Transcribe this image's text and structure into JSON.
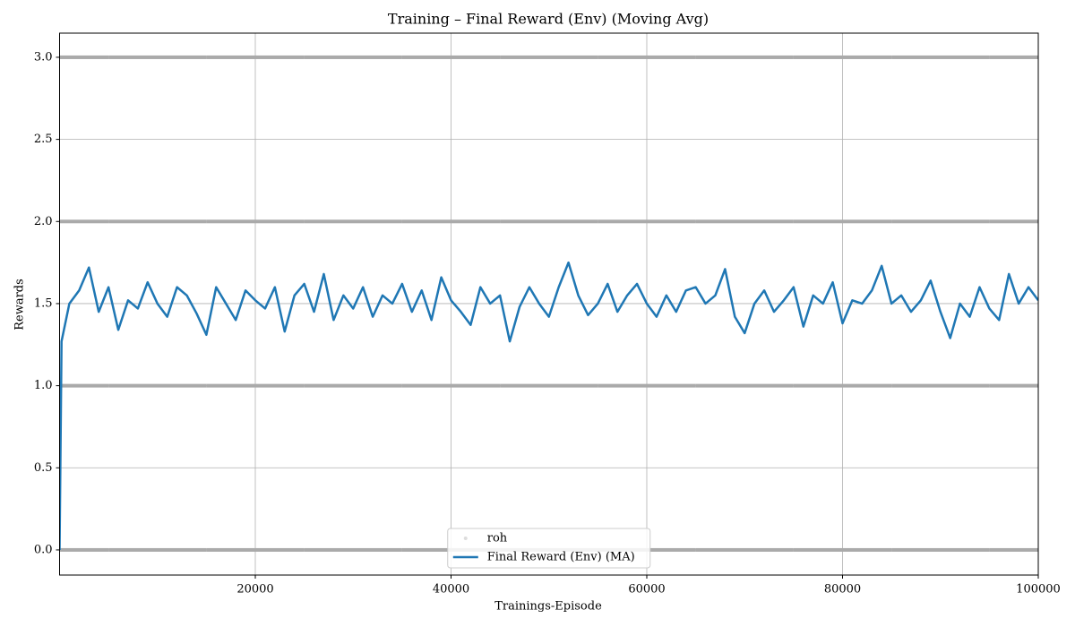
{
  "chart_data": {
    "type": "line",
    "title": "Training – Final Reward (Env) (Moving Avg)",
    "x_label": "Trainings-Episode",
    "y_label": "Rewards",
    "xlim": [
      0,
      100000
    ],
    "xticks": [
      20000,
      40000,
      60000,
      80000,
      100000
    ],
    "ylim": [
      -0.153,
      3.147
    ],
    "yticks": [
      {
        "value": 0,
        "label": "0.0"
      },
      {
        "value": 0.5,
        "label": "0.5"
      },
      {
        "value": 1,
        "label": "1.0"
      },
      {
        "value": 1.5,
        "label": "1.5"
      },
      {
        "value": 2,
        "label": "2.0"
      },
      {
        "value": 2.5,
        "label": "2.5"
      },
      {
        "value": 3,
        "label": "3.0"
      }
    ],
    "grid": true,
    "legend": "lower center",
    "series": [
      {
        "name": "roh",
        "kind": "scatter",
        "color": "#aaaaaa",
        "x": [
          0,
          10000,
          20000,
          30000,
          40000,
          50000,
          60000,
          70000,
          80000,
          90000,
          100000,
          0,
          10000,
          20000,
          30000,
          40000,
          50000,
          60000,
          70000,
          80000,
          90000,
          100000,
          0,
          10000,
          20000,
          30000,
          40000,
          50000,
          60000,
          70000,
          80000,
          90000,
          100000,
          0,
          10000,
          20000,
          30000,
          40000,
          50000,
          60000,
          70000,
          80000,
          90000,
          100000
        ],
        "values": [
          0,
          0,
          0,
          0,
          0,
          0,
          0,
          0,
          0,
          0,
          0,
          1,
          1,
          1,
          1,
          1,
          1,
          1,
          1,
          1,
          1,
          1,
          2,
          2,
          2,
          2,
          2,
          2,
          2,
          2,
          2,
          2,
          2,
          3,
          3,
          3,
          3,
          3,
          3,
          3,
          3,
          3,
          3,
          3
        ]
      },
      {
        "name": "Final Reward (Env) (MA)",
        "kind": "line",
        "color": "#1f77b4",
        "x": [
          0,
          200,
          1000,
          2000,
          3000,
          4000,
          5000,
          6000,
          7000,
          8000,
          9000,
          10000,
          11000,
          12000,
          13000,
          14000,
          15000,
          16000,
          17000,
          18000,
          19000,
          20000,
          21000,
          22000,
          23000,
          24000,
          25000,
          26000,
          27000,
          28000,
          29000,
          30000,
          31000,
          32000,
          33000,
          34000,
          35000,
          36000,
          37000,
          38000,
          39000,
          40000,
          41000,
          42000,
          43000,
          44000,
          45000,
          46000,
          47000,
          48000,
          49000,
          50000,
          51000,
          52000,
          53000,
          54000,
          55000,
          56000,
          57000,
          58000,
          59000,
          60000,
          61000,
          62000,
          63000,
          64000,
          65000,
          66000,
          67000,
          68000,
          69000,
          70000,
          71000,
          72000,
          73000,
          74000,
          75000,
          76000,
          77000,
          78000,
          79000,
          80000,
          81000,
          82000,
          83000,
          84000,
          85000,
          86000,
          87000,
          88000,
          89000,
          90000,
          91000,
          92000,
          93000,
          94000,
          95000,
          96000,
          97000,
          98000,
          99000,
          100000
        ],
        "values": [
          0,
          1.27,
          1.5,
          1.58,
          1.72,
          1.45,
          1.6,
          1.34,
          1.52,
          1.47,
          1.63,
          1.5,
          1.42,
          1.6,
          1.55,
          1.44,
          1.31,
          1.6,
          1.5,
          1.4,
          1.58,
          1.52,
          1.47,
          1.6,
          1.33,
          1.55,
          1.62,
          1.45,
          1.68,
          1.4,
          1.55,
          1.47,
          1.6,
          1.42,
          1.55,
          1.5,
          1.62,
          1.45,
          1.58,
          1.4,
          1.66,
          1.52,
          1.45,
          1.37,
          1.6,
          1.5,
          1.55,
          1.27,
          1.48,
          1.6,
          1.5,
          1.42,
          1.6,
          1.75,
          1.55,
          1.43,
          1.5,
          1.62,
          1.45,
          1.55,
          1.62,
          1.5,
          1.42,
          1.55,
          1.45,
          1.58,
          1.6,
          1.5,
          1.55,
          1.71,
          1.42,
          1.32,
          1.5,
          1.58,
          1.45,
          1.52,
          1.6,
          1.36,
          1.55,
          1.5,
          1.63,
          1.38,
          1.52,
          1.5,
          1.58,
          1.73,
          1.5,
          1.55,
          1.45,
          1.52,
          1.64,
          1.45,
          1.29,
          1.5,
          1.42,
          1.6,
          1.47,
          1.4,
          1.68,
          1.5,
          1.6,
          1.52
        ]
      }
    ]
  }
}
